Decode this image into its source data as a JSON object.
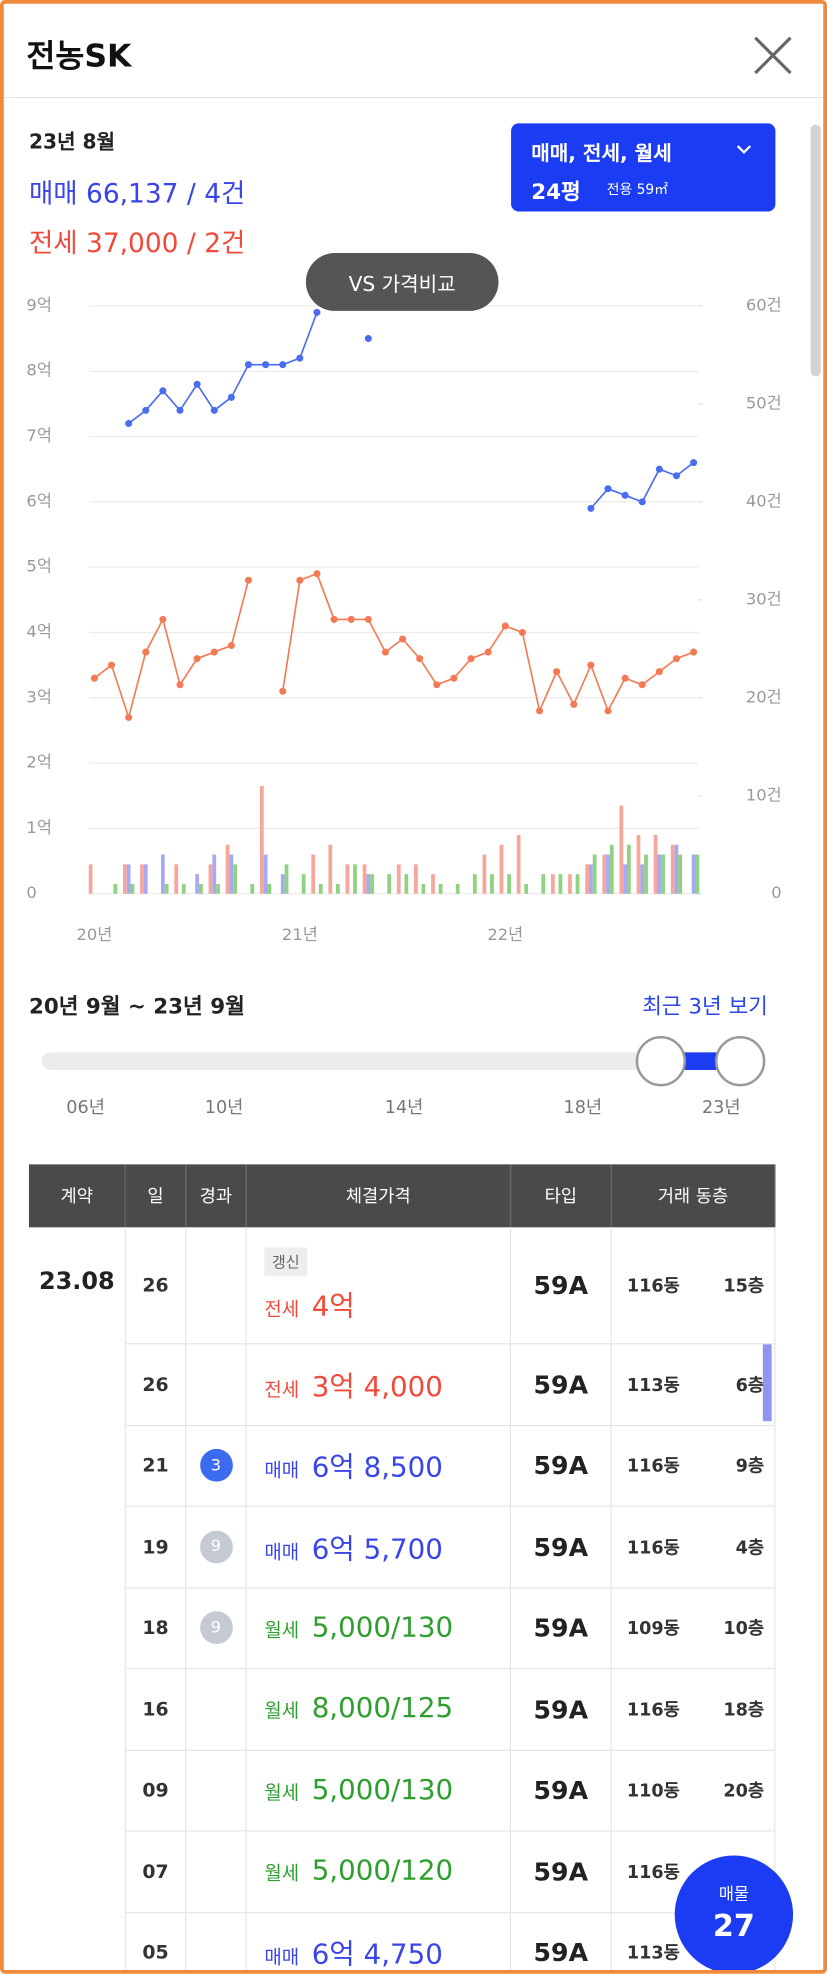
{
  "header": {
    "title": "전농SK"
  },
  "summary": {
    "month": "23년 8월",
    "sale": "매매 66,137 / 4건",
    "jeonse": "전세 37,000 / 2건"
  },
  "filter": {
    "types": "매매, 전세, 월세",
    "size": "24평",
    "area": "전용 59㎡"
  },
  "compare_button": "VS 가격비교",
  "chart_data": {
    "type": "line",
    "categories": [
      "20년",
      null,
      null,
      null,
      null,
      null,
      null,
      null,
      null,
      null,
      null,
      null,
      "21년",
      null,
      null,
      null,
      null,
      null,
      null,
      null,
      null,
      null,
      null,
      null,
      "22년",
      null,
      null,
      null,
      null,
      null,
      null,
      null,
      null,
      null,
      null,
      null
    ],
    "ylim": [
      0,
      9
    ],
    "yticks": [
      0,
      {
        "value": 1,
        "label": "1억"
      },
      {
        "value": 2,
        "label": "2억"
      },
      {
        "value": 3,
        "label": "3억"
      },
      {
        "value": 4,
        "label": "4억"
      },
      {
        "value": 5,
        "label": "5억"
      },
      {
        "value": 6,
        "label": "6억"
      },
      {
        "value": 7,
        "label": "7억"
      },
      {
        "value": 8,
        "label": "8억"
      },
      {
        "value": 9,
        "label": "9억"
      }
    ],
    "y2lim": [
      0,
      60
    ],
    "y2ticks": [
      0,
      {
        "value": 10,
        "label": "10건"
      },
      {
        "value": 20,
        "label": "20건"
      },
      {
        "value": 30,
        "label": "30건"
      },
      {
        "value": 40,
        "label": "40건"
      },
      {
        "value": 50,
        "label": "50건"
      },
      {
        "value": 60,
        "label": "60건"
      }
    ],
    "grid": true,
    "series": [
      {
        "type": "bar",
        "axis": "y2",
        "color": "#f6a79c",
        "values": [
          3,
          0,
          3,
          3,
          0,
          3,
          0,
          3,
          5,
          0,
          11,
          0,
          0,
          4,
          5,
          3,
          3,
          0,
          3,
          3,
          2,
          0,
          0,
          4,
          5,
          6,
          0,
          2,
          2,
          3,
          4,
          9,
          6,
          6,
          5,
          0
        ]
      },
      {
        "type": "bar",
        "axis": "y2",
        "color": "#a7a9f2",
        "values": [
          0,
          0,
          3,
          3,
          4,
          0,
          2,
          4,
          4,
          0,
          4,
          2,
          0,
          0,
          0,
          0,
          2,
          0,
          0,
          0,
          0,
          0,
          0,
          0,
          0,
          0,
          0,
          0,
          0,
          3,
          4,
          3,
          3,
          4,
          5,
          4
        ]
      },
      {
        "type": "bar",
        "axis": "y2",
        "color": "#8fd27f",
        "values": [
          0,
          1,
          1,
          0,
          1,
          1,
          1,
          1,
          3,
          1,
          1,
          3,
          2,
          1,
          1,
          3,
          2,
          2,
          2,
          1,
          1,
          1,
          2,
          2,
          2,
          1,
          2,
          2,
          2,
          4,
          5,
          5,
          4,
          4,
          4,
          4
        ]
      },
      {
        "type": "line",
        "color": "#4a6cf0",
        "values": [
          null,
          null,
          7.2,
          7.4,
          7.7,
          7.4,
          7.8,
          7.4,
          7.6,
          8.1,
          8.1,
          8.1,
          8.2,
          8.9,
          null,
          null,
          8.5,
          null,
          null,
          null,
          null,
          null,
          null,
          null,
          null,
          null,
          null,
          null,
          null,
          5.9,
          6.2,
          6.1,
          6.0,
          6.5,
          6.4,
          6.6
        ]
      },
      {
        "type": "line",
        "color": "#f47a55",
        "values": [
          3.3,
          3.5,
          2.7,
          3.7,
          4.2,
          3.2,
          3.6,
          3.7,
          3.8,
          4.8,
          null,
          3.1,
          4.8,
          4.9,
          4.2,
          4.2,
          4.2,
          3.7,
          3.9,
          3.6,
          3.2,
          3.3,
          3.6,
          3.7,
          4.1,
          4.0,
          2.8,
          3.4,
          2.9,
          3.5,
          2.8,
          3.3,
          3.2,
          3.4,
          3.6,
          3.7
        ]
      }
    ]
  },
  "range": {
    "label": "20년 9월 ~ 23년 9월",
    "recent": "최근 3년 보기",
    "ticks": [
      "06년",
      "10년",
      "14년",
      "18년",
      "23년"
    ]
  },
  "table": {
    "header": [
      "계약",
      "일",
      "경과",
      "체결가격",
      "타입",
      "거래 동층"
    ],
    "rows": [
      {
        "contract": "23.08",
        "day": "26",
        "tag": "갱신",
        "kind": "전세",
        "price": "4억",
        "color": "#f04a3a",
        "type": "59A",
        "dong": "116동",
        "floor": "15층"
      },
      {
        "day": "26",
        "kind": "전세",
        "price": "3억 4,000",
        "color": "#f04a3a",
        "type": "59A",
        "dong": "113동",
        "floor": "6층"
      },
      {
        "day": "21",
        "badge": "3",
        "badge_color": "#3b6cf0",
        "kind": "매매",
        "price": "6억 8,500",
        "color": "#3a45e8",
        "type": "59A",
        "dong": "116동",
        "floor": "9층"
      },
      {
        "day": "19",
        "badge": "9",
        "badge_color": "#c5cad2",
        "kind": "매매",
        "price": "6억 5,700",
        "color": "#3a45e8",
        "type": "59A",
        "dong": "116동",
        "floor": "4층"
      },
      {
        "day": "18",
        "badge": "9",
        "badge_color": "#c5cad2",
        "kind": "월세",
        "price": "5,000/130",
        "color": "#2e9e2e",
        "type": "59A",
        "dong": "109동",
        "floor": "10층"
      },
      {
        "day": "16",
        "kind": "월세",
        "price": "8,000/125",
        "color": "#2e9e2e",
        "type": "59A",
        "dong": "116동",
        "floor": "18층"
      },
      {
        "day": "09",
        "kind": "월세",
        "price": "5,000/130",
        "color": "#2e9e2e",
        "type": "59A",
        "dong": "110동",
        "floor": "20층"
      },
      {
        "day": "07",
        "kind": "월세",
        "price": "5,000/120",
        "color": "#2e9e2e",
        "type": "59A",
        "dong": "116동"
      },
      {
        "day": "05",
        "kind": "매매",
        "price": "6억 4,750",
        "color": "#3a45e8",
        "type": "59A",
        "dong": "113동"
      }
    ]
  },
  "fab": {
    "label": "매물",
    "count": "27"
  }
}
